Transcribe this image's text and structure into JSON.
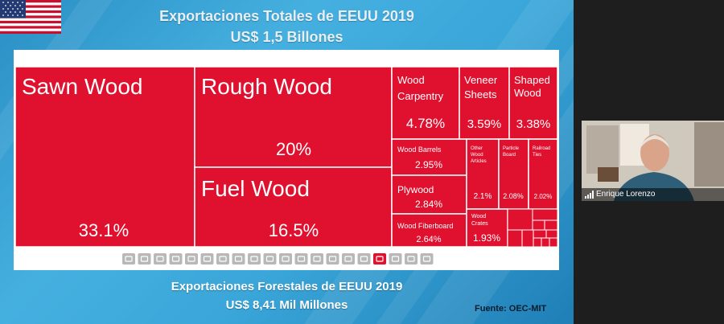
{
  "slide": {
    "title_line1": "Exportaciones Totales de EEUU 2019",
    "title_line2": "US$ 1,5 Billones",
    "caption_line1": "Exportaciones Forestales de EEUU 2019",
    "caption_line2": "US$ 8,41 Mil Millones",
    "source": "Fuente: OEC-MIT"
  },
  "chart_data": {
    "type": "treemap",
    "items": [
      {
        "label": "Sawn Wood",
        "value": "33.1%"
      },
      {
        "label": "Rough Wood",
        "value": "20%"
      },
      {
        "label": "Fuel Wood",
        "value": "16.5%"
      },
      {
        "label": "Wood Carpentry",
        "value": "4.78%"
      },
      {
        "label": "Veneer Sheets",
        "value": "3.59%"
      },
      {
        "label": "Shaped Wood",
        "value": "3.38%"
      },
      {
        "label": "Wood Barrels",
        "value": "2.95%"
      },
      {
        "label": "Plywood",
        "value": "2.84%"
      },
      {
        "label": "Wood Fiberboard",
        "value": "2.64%"
      },
      {
        "label": "Other Wood Articles",
        "value": "2.1%"
      },
      {
        "label": "Particle Board",
        "value": "2.08%"
      },
      {
        "label": "Railroad Ties",
        "value": "2.02%"
      },
      {
        "label": "Wood Crates",
        "value": "1.93%"
      }
    ],
    "colors": {
      "fill": "#e0102f",
      "border": "#ffffff",
      "text": "#ffffff"
    }
  },
  "toolbar": {
    "icons": [
      "gear-icon",
      "hammer-icon",
      "bottle-icon",
      "flask-icon",
      "gauge-icon",
      "plant-icon",
      "tray-icon",
      "cube-icon",
      "gem-icon",
      "car-icon",
      "sofa-icon",
      "clipboard-icon",
      "shirt-icon",
      "box-icon",
      "drop-icon",
      "bus-icon",
      "wood-icon",
      "grid-icon",
      "cylinder-icon",
      "ship-icon"
    ],
    "active_index": 16
  },
  "video": {
    "participant_name": "Enrique Lorenzo"
  }
}
